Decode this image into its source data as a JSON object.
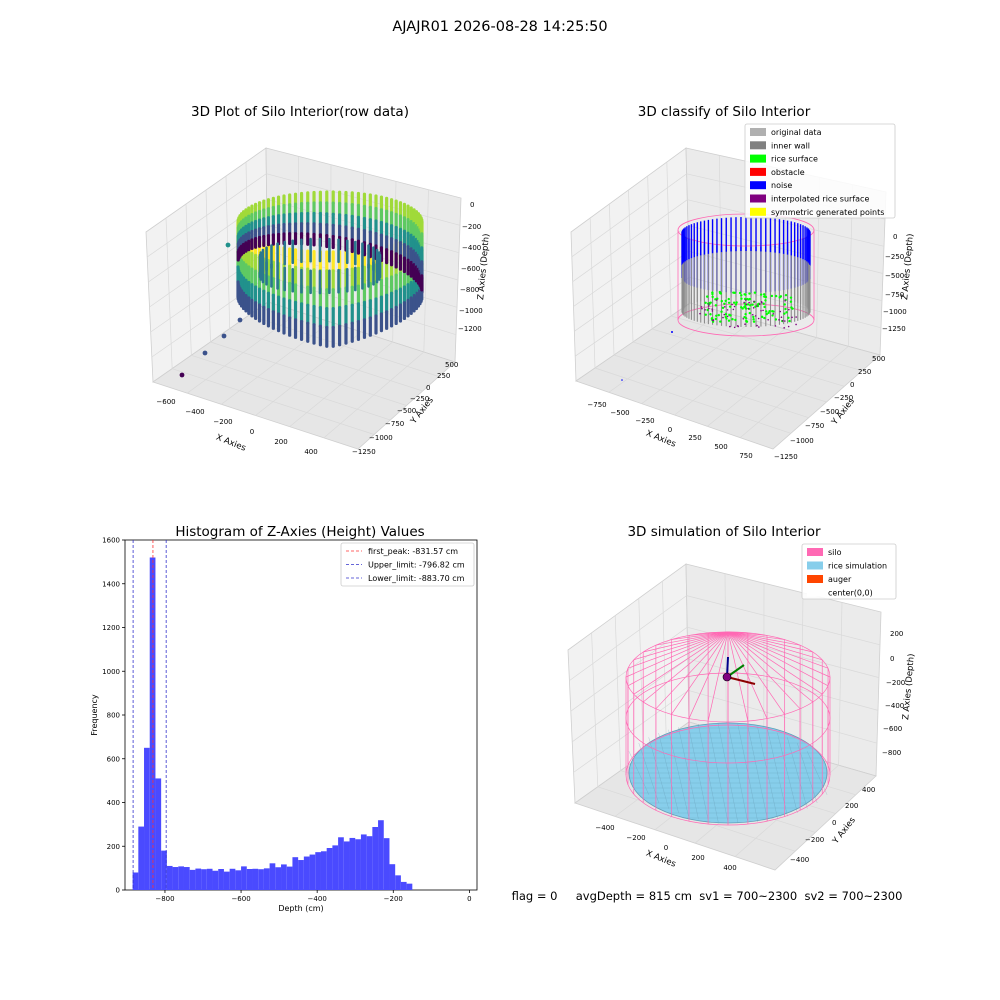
{
  "suptitle": "AJAJR01 2026-08-28 14:25:50",
  "status_line": "flag = 0     avgDepth = 815 cm  sv1 = 700~2300  sv2 = 700~2300",
  "colors": {
    "hist_bar": "#4a4aff",
    "first_peak": "#ff3333",
    "limit": "#3333cc",
    "silo": "#ff69b4",
    "rice_sim": "#87ceeb",
    "auger": "#ff4500",
    "grid": "#d9d9d9",
    "pane": "#f2f2f2"
  },
  "chart_data": [
    {
      "type": "scatter3d",
      "title": "3D Plot of Silo Interior(row data)",
      "xlabel": "X Axies",
      "ylabel": "Y Axies",
      "zlabel": "Z Axies (Depth)",
      "x_ticks": [
        "−600",
        "−400",
        "−200",
        "0",
        "200",
        "400"
      ],
      "y_ticks": [
        "500",
        "250",
        "0",
        "−250",
        "−500",
        "−750",
        "−1000",
        "−1250"
      ],
      "z_ticks": [
        "0",
        "−200",
        "−400",
        "−600",
        "−800",
        "−1000",
        "−1200"
      ],
      "colormap": "viridis"
    },
    {
      "type": "scatter3d",
      "title": "3D classify of Silo Interior",
      "xlabel": "X Axies",
      "ylabel": "Y Axies",
      "zlabel": "Z Axies (Depth)",
      "x_ticks": [
        "−750",
        "−500",
        "−250",
        "0",
        "250",
        "500",
        "750"
      ],
      "y_ticks": [
        "500",
        "250",
        "0",
        "−250",
        "−500",
        "−750",
        "−1000",
        "−1250"
      ],
      "z_ticks": [
        "0",
        "−250",
        "−500",
        "−750",
        "−1000",
        "−1250"
      ],
      "legend_position": "top-right",
      "legend": [
        {
          "label": "original data",
          "color": "#b0b0b0"
        },
        {
          "label": "inner wall",
          "color": "#808080"
        },
        {
          "label": "rice surface",
          "color": "#00ff00"
        },
        {
          "label": "obstacle",
          "color": "#ff0000"
        },
        {
          "label": "noise",
          "color": "#0000ff"
        },
        {
          "label": "interpolated rice surface",
          "color": "#800080"
        },
        {
          "label": "symmetric generated points",
          "color": "#ffff00"
        }
      ]
    },
    {
      "type": "bar",
      "title": "Histogram of Z-Axies (Height) Values",
      "xlabel": "Depth (cm)",
      "ylabel": "Frequency",
      "xlim": [
        -905,
        20
      ],
      "ylim": [
        0,
        1600
      ],
      "x_ticks": [
        -800,
        -600,
        -400,
        -200,
        0
      ],
      "y_ticks": [
        0,
        200,
        400,
        600,
        800,
        1000,
        1200,
        1400,
        1600
      ],
      "bin_start": -885,
      "bin_width": 15,
      "values": [
        80,
        290,
        650,
        1520,
        510,
        180,
        110,
        105,
        108,
        105,
        92,
        98,
        95,
        97,
        88,
        96,
        84,
        97,
        90,
        108,
        96,
        97,
        95,
        99,
        122,
        104,
        117,
        107,
        150,
        137,
        153,
        162,
        173,
        177,
        192,
        204,
        241,
        222,
        238,
        232,
        254,
        246,
        288,
        319,
        237,
        118,
        67,
        37,
        29
      ],
      "lines": [
        {
          "label": "first_peak: -831.57 cm",
          "x": -831.57,
          "color": "#ff3333"
        },
        {
          "label": "Upper_limit: -796.82 cm",
          "x": -796.82,
          "color": "#3333cc"
        },
        {
          "label": "Lower_limit: -883.70 cm",
          "x": -883.7,
          "color": "#3333cc"
        }
      ],
      "legend_position": "top-right"
    },
    {
      "type": "surface3d",
      "title": "3D simulation of Silo Interior",
      "xlabel": "X Axies",
      "ylabel": "Y Axies",
      "zlabel": "Z Axies (Depth)",
      "x_ticks": [
        "−400",
        "−200",
        "0",
        "200",
        "400"
      ],
      "y_ticks": [
        "400",
        "200",
        "0",
        "−200",
        "−400"
      ],
      "z_ticks": [
        "200",
        "0",
        "−200",
        "−400",
        "−600",
        "−800"
      ],
      "legend_position": "top-right",
      "legend": [
        {
          "label": "silo",
          "color": "#ff69b4"
        },
        {
          "label": "rice simulation",
          "color": "#87ceeb"
        },
        {
          "label": "auger",
          "color": "#ff4500"
        },
        {
          "label": "center(0,0)",
          "color": "#ffffff"
        }
      ]
    }
  ]
}
